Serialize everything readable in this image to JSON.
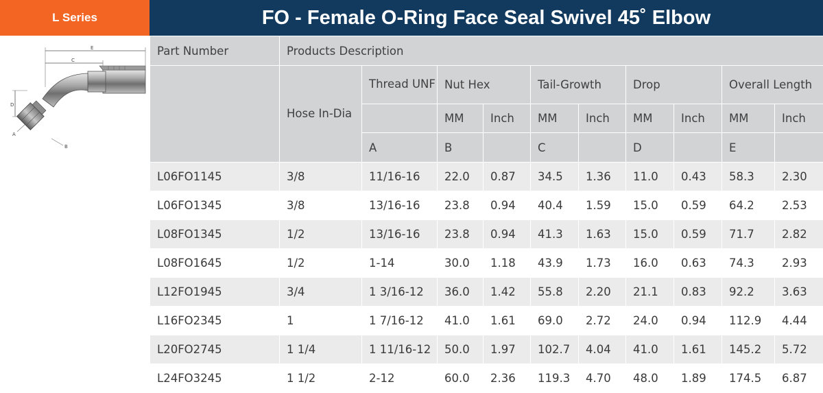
{
  "series_tab": "L Series",
  "title": "FO - Female O-Ring Face Seal Swivel 45˚ Elbow",
  "diagram_labels": {
    "e": "E",
    "c": "C",
    "d": "D",
    "a": "A",
    "b": "B"
  },
  "headers": {
    "part_number": "Part Number",
    "products_description": "Products Description",
    "hose_in_dia": "Hose In-Dia",
    "thread_unf": "Thread UNF",
    "nut_hex": "Nut Hex",
    "tail_growth": "Tail-Growth",
    "drop": "Drop",
    "overall_length": "Overall Length",
    "mm": "MM",
    "inch": "Inch",
    "letter_a": "A",
    "letter_b": "B",
    "letter_c": "C",
    "letter_d": "D",
    "letter_e": "E"
  },
  "rows": [
    {
      "part": "L06FO1145",
      "hose": "3/8",
      "thread": "11/16-16",
      "nut_mm": "22.0",
      "nut_in": "0.87",
      "tail_mm": "34.5",
      "tail_in": "1.36",
      "drop_mm": "11.0",
      "drop_in": "0.43",
      "len_mm": "58.3",
      "len_in": "2.30"
    },
    {
      "part": "L06FO1345",
      "hose": "3/8",
      "thread": "13/16-16",
      "nut_mm": "23.8",
      "nut_in": "0.94",
      "tail_mm": "40.4",
      "tail_in": "1.59",
      "drop_mm": "15.0",
      "drop_in": "0.59",
      "len_mm": "64.2",
      "len_in": "2.53"
    },
    {
      "part": "L08FO1345",
      "hose": "1/2",
      "thread": "13/16-16",
      "nut_mm": "23.8",
      "nut_in": "0.94",
      "tail_mm": "41.3",
      "tail_in": "1.63",
      "drop_mm": "15.0",
      "drop_in": "0.59",
      "len_mm": "71.7",
      "len_in": "2.82"
    },
    {
      "part": "L08FO1645",
      "hose": "1/2",
      "thread": "1-14",
      "nut_mm": "30.0",
      "nut_in": "1.18",
      "tail_mm": "43.9",
      "tail_in": "1.73",
      "drop_mm": "16.0",
      "drop_in": "0.63",
      "len_mm": "74.3",
      "len_in": "2.93"
    },
    {
      "part": "L12FO1945",
      "hose": "3/4",
      "thread": "1 3/16-12",
      "nut_mm": "36.0",
      "nut_in": "1.42",
      "tail_mm": "55.8",
      "tail_in": "2.20",
      "drop_mm": "21.1",
      "drop_in": "0.83",
      "len_mm": "92.2",
      "len_in": "3.63"
    },
    {
      "part": "L16FO2345",
      "hose": "1",
      "thread": "1 7/16-12",
      "nut_mm": "41.0",
      "nut_in": "1.61",
      "tail_mm": "69.0",
      "tail_in": "2.72",
      "drop_mm": "24.0",
      "drop_in": "0.94",
      "len_mm": "112.9",
      "len_in": "4.44"
    },
    {
      "part": "L20FO2745",
      "hose": "1 1/4",
      "thread": "1 11/16-12",
      "nut_mm": "50.0",
      "nut_in": "1.97",
      "tail_mm": "102.7",
      "tail_in": "4.04",
      "drop_mm": "41.0",
      "drop_in": "1.61",
      "len_mm": "145.2",
      "len_in": "5.72"
    },
    {
      "part": "L24FO3245",
      "hose": "1 1/2",
      "thread": "2-12",
      "nut_mm": "60.0",
      "nut_in": "2.36",
      "tail_mm": "119.3",
      "tail_in": "4.70",
      "drop_mm": "48.0",
      "drop_in": "1.89",
      "len_mm": "174.5",
      "len_in": "6.87"
    }
  ],
  "colors": {
    "series_tab": "#f26522",
    "title_bar": "#123a5e",
    "header_bg": "#d2d3d5",
    "row_alt": "#ebebeb"
  }
}
